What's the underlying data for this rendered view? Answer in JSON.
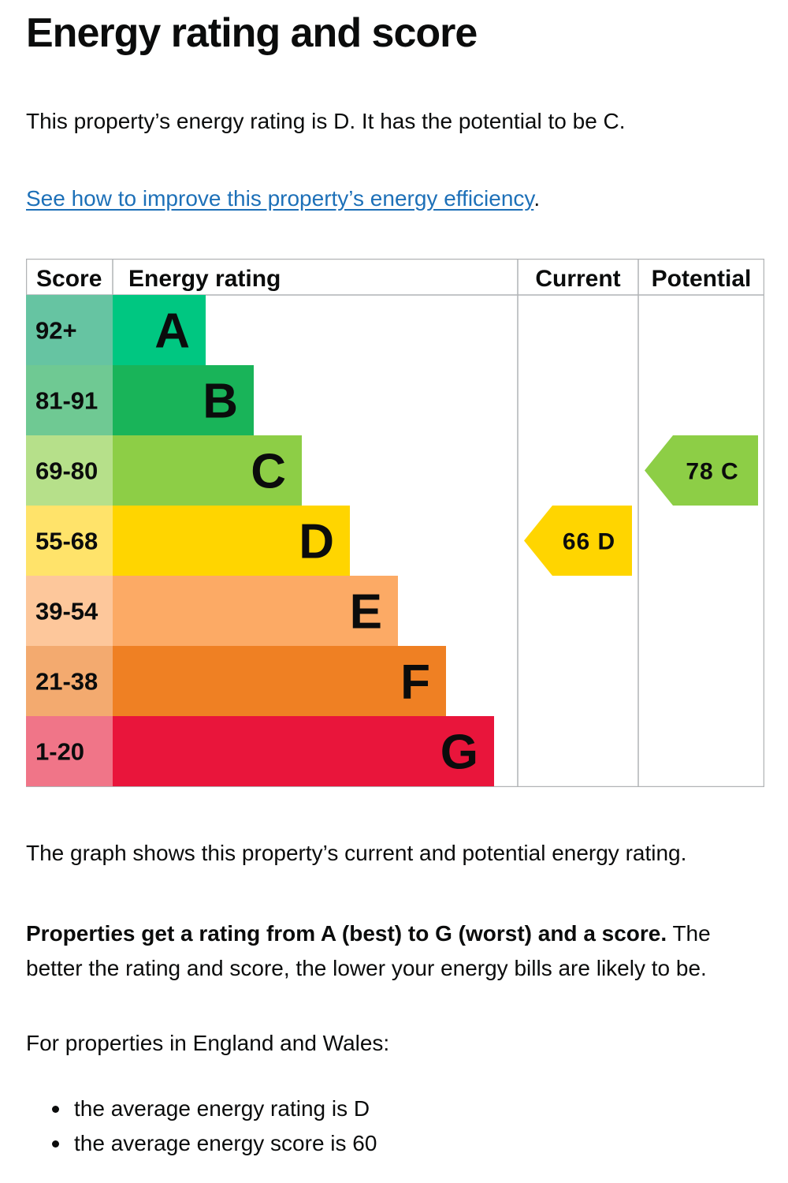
{
  "page": {
    "title": "Energy rating and score",
    "intro": "This property’s energy rating is D. It has the potential to be C.",
    "link_text": "See how to improve this property’s energy efficiency",
    "link_suffix": ".",
    "graph_note": "The graph shows this property’s current and potential energy rating.",
    "rating_bold": "Properties get a rating from A (best) to G (worst) and a score.",
    "rating_rest": " The better the rating and score, the lower your energy bills are likely to be.",
    "region_intro": "For properties in England and Wales:",
    "averages": [
      "the average energy rating is D",
      "the average energy score is 60"
    ]
  },
  "chart_data": {
    "type": "table",
    "headers": {
      "score": "Score",
      "rating": "Energy rating",
      "current": "Current",
      "potential": "Potential"
    },
    "bands": [
      {
        "range": "92+",
        "letter": "A",
        "color": "#00c781",
        "score_bg": "#66c4a2"
      },
      {
        "range": "81-91",
        "letter": "B",
        "color": "#19b459",
        "score_bg": "#6fc993"
      },
      {
        "range": "69-80",
        "letter": "C",
        "color": "#8dce46",
        "score_bg": "#b6e08a"
      },
      {
        "range": "55-68",
        "letter": "D",
        "color": "#ffd500",
        "score_bg": "#ffe36a"
      },
      {
        "range": "39-54",
        "letter": "E",
        "color": "#fcaa65",
        "score_bg": "#fdc79b"
      },
      {
        "range": "21-38",
        "letter": "F",
        "color": "#ef8023",
        "score_bg": "#f3aa6f"
      },
      {
        "range": "1-20",
        "letter": "G",
        "color": "#e9153b",
        "score_bg": "#f07588"
      }
    ],
    "current": {
      "score": 66,
      "letter": "D",
      "color": "#ffd500"
    },
    "potential": {
      "score": 78,
      "letter": "C",
      "color": "#8dce46"
    }
  }
}
